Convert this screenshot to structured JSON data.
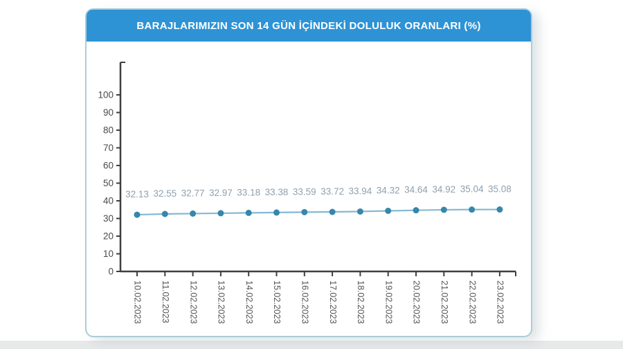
{
  "page": {
    "background": "#ffffff",
    "footer_strip_color": "#e7e9e9"
  },
  "card": {
    "background": "#ffffff",
    "border_color": "#aacdd8"
  },
  "header": {
    "background": "#2e93d5",
    "text_color": "#ffffff"
  },
  "chart_data": {
    "type": "line",
    "title": "BARAJLARIMIZIN SON 14 GÜN İÇİNDEKİ DOLULUK ORANLARI (%)",
    "x": [
      "10.02.2023",
      "11.02.2023",
      "12.02.2023",
      "13.02.2023",
      "14.02.2023",
      "15.02.2023",
      "16.02.2023",
      "17.02.2023",
      "18.02.2023",
      "19.02.2023",
      "20.02.2023",
      "21.02.2023",
      "22.02.2023",
      "23.02.2023"
    ],
    "values": [
      32.13,
      32.55,
      32.77,
      32.97,
      33.18,
      33.38,
      33.59,
      33.72,
      33.94,
      34.32,
      34.64,
      34.92,
      35.04,
      35.08
    ],
    "xlabel": "",
    "ylabel": "",
    "ylim": [
      0,
      100
    ],
    "ytick_step": 10,
    "grid": false,
    "legend_position": "none",
    "data_labels": true,
    "colors": {
      "line": "#85b8d3",
      "marker": "#3687ab",
      "value_label": "#8fa0ad",
      "axis": "#3f3f3f",
      "ytick_label": "#4a4a4a",
      "xtick_label": "#555555"
    }
  }
}
